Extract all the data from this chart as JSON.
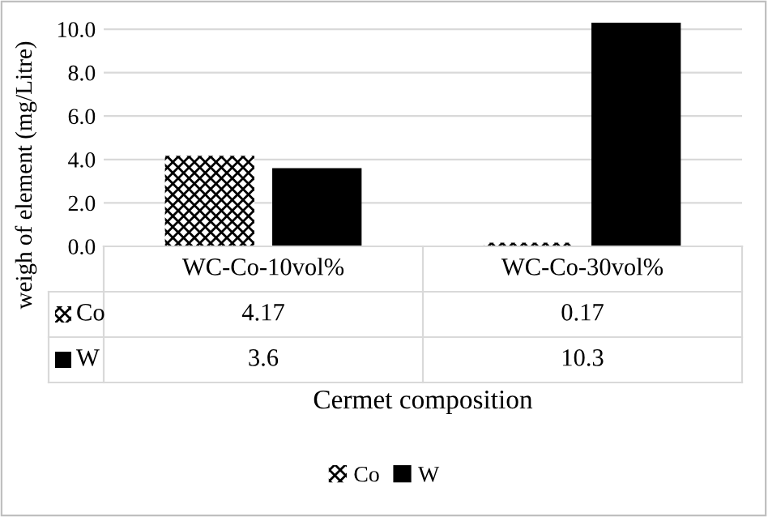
{
  "chart_data": {
    "type": "bar",
    "xlabel": "Cermet composition",
    "ylabel": "weigh of element (mg/Litre)",
    "categories": [
      "WC-Co-10vol%",
      "WC-Co-30vol%"
    ],
    "series": [
      {
        "name": "Co",
        "color": "#000000",
        "values": [
          4.17,
          0.17
        ]
      },
      {
        "name": "W",
        "color": "#000000",
        "values": [
          3.6,
          10.3
        ]
      }
    ],
    "ylim": [
      0,
      10.3
    ],
    "yticks": [
      {
        "value": 0,
        "label": "0.0"
      },
      {
        "value": 2,
        "label": "2.0"
      },
      {
        "value": 4,
        "label": "4.0"
      },
      {
        "value": 6,
        "label": "6.0"
      },
      {
        "value": 8,
        "label": "8.0"
      },
      {
        "value": 10,
        "label": "10.0"
      }
    ],
    "grid": "y",
    "legend": "bottom",
    "data_labels": true
  }
}
